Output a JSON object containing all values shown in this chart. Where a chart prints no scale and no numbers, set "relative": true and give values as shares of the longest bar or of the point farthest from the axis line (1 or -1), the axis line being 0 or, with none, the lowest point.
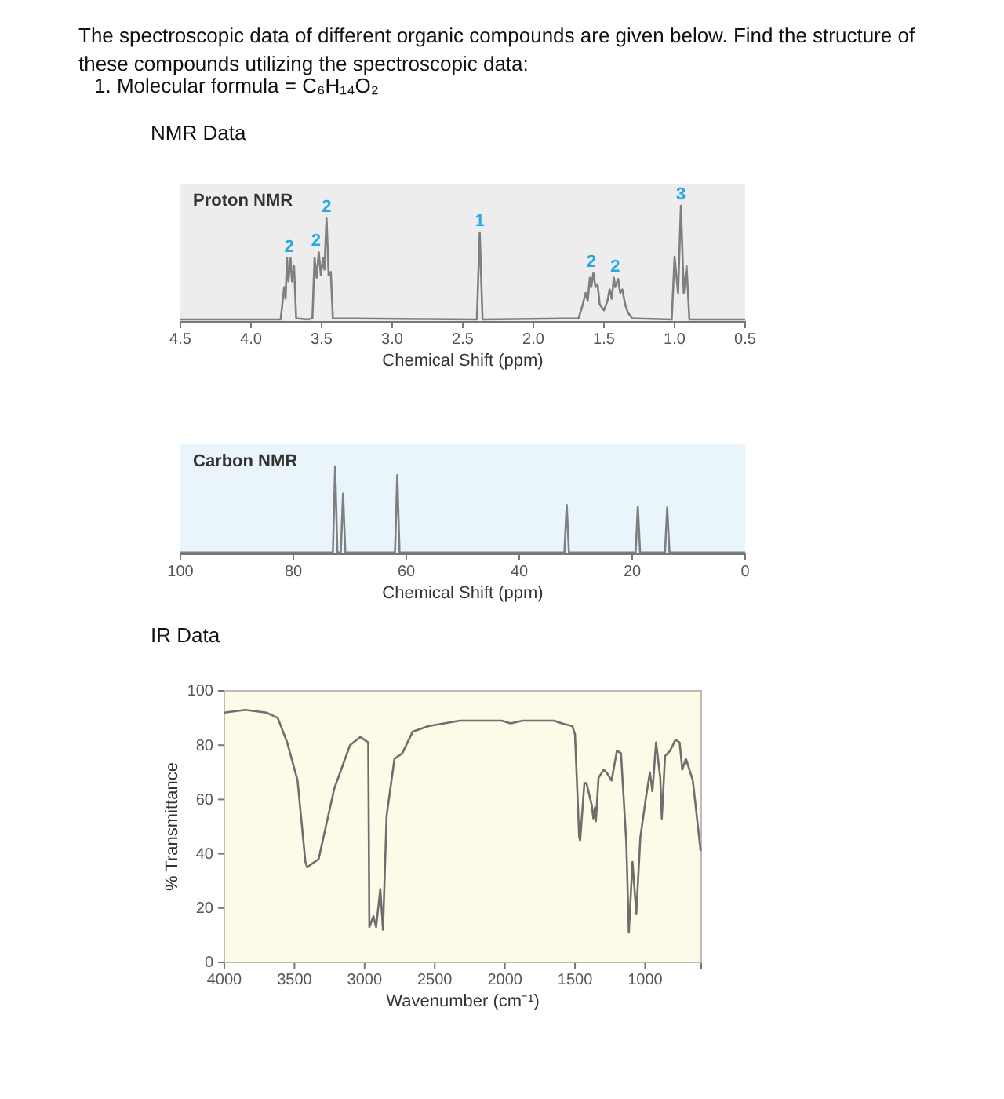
{
  "chart_data": [
    {
      "type": "line",
      "title": "Proton NMR",
      "xlabel": "Chemical Shift (ppm)",
      "relative": true,
      "xlim": [
        4.5,
        0.5
      ],
      "xticks": [
        4.5,
        {
          "value": 4,
          "label": "4.0"
        },
        3.5,
        {
          "value": 3,
          "label": "3.0"
        },
        2.5,
        {
          "value": 2,
          "label": "2.0"
        },
        1.5,
        {
          "value": 1,
          "label": "1.0"
        },
        0.5
      ],
      "annotations": [
        "The spectroscopic data of different organic compounds are given below. Find the structure of these compounds utilizing the spectroscopic data:",
        "1.   Molecular formula  = C₆H₁₄O₂",
        "NMR Data",
        {
          "text": "2",
          "x": 3.73,
          "y": 0.55
        },
        {
          "text": "2",
          "x": 3.54,
          "y": 0.6
        },
        {
          "text": "2",
          "x": 3.465,
          "y": 0.89
        },
        {
          "text": "1",
          "x": 2.38,
          "y": 0.77
        },
        {
          "text": "2",
          "x": 1.59,
          "y": 0.42
        },
        {
          "text": "2",
          "x": 1.42,
          "y": 0.38
        },
        {
          "text": "3",
          "x": 0.955,
          "y": 1
        }
      ],
      "series": [
        {
          "color": "#7f7f7f",
          "x": [
            4.5,
            3.79,
            3.765,
            3.755,
            3.745,
            3.735,
            3.72,
            3.71,
            3.695,
            3.68,
            3.6,
            3.565,
            3.55,
            3.535,
            3.52,
            3.505,
            3.49,
            3.48,
            3.465,
            3.45,
            3.435,
            3.42,
            2.4,
            2.38,
            2.36,
            1.68,
            1.65,
            1.63,
            1.615,
            1.6,
            1.59,
            1.575,
            1.56,
            1.545,
            1.53,
            1.5,
            1.475,
            1.46,
            1.445,
            1.43,
            1.42,
            1.4,
            1.385,
            1.37,
            1.35,
            1.33,
            1.3,
            1.02,
            1.0,
            0.975,
            0.955,
            0.935,
            0.915,
            0.895,
            0.5
          ],
          "values": [
            0.02,
            0.02,
            0.3,
            0.2,
            0.55,
            0.35,
            0.55,
            0.35,
            0.48,
            0.03,
            0.02,
            0.03,
            0.55,
            0.38,
            0.6,
            0.4,
            0.55,
            0.45,
            0.89,
            0.4,
            0.43,
            0.03,
            0.02,
            0.77,
            0.02,
            0.03,
            0.15,
            0.25,
            0.18,
            0.38,
            0.3,
            0.42,
            0.3,
            0.32,
            0.15,
            0.1,
            0.18,
            0.28,
            0.2,
            0.38,
            0.3,
            0.37,
            0.25,
            0.28,
            0.15,
            0.08,
            0.03,
            0.02,
            0.56,
            0.25,
            1.0,
            0.25,
            0.48,
            0.02,
            0.02
          ]
        }
      ]
    },
    {
      "type": "line",
      "title": "Carbon NMR",
      "xlabel": "Chemical Shift (ppm)",
      "relative": true,
      "xlim": [
        100,
        0
      ],
      "xticks": [
        100,
        80,
        60,
        40,
        20,
        0
      ],
      "series": [
        {
          "color": "#7f7f7f",
          "x": [
            100,
            73,
            72.6,
            72.2,
            71.6,
            71.2,
            70.8,
            62,
            61.6,
            61.2,
            32,
            31.6,
            31.2,
            19.4,
            19,
            18.6,
            14.2,
            13.8,
            13.4,
            0
          ],
          "values": [
            0.02,
            0.02,
            1,
            0.02,
            0.02,
            0.69,
            0.02,
            0.02,
            0.9,
            0.02,
            0.02,
            0.56,
            0.02,
            0.02,
            0.54,
            0.02,
            0.02,
            0.53,
            0.02,
            0.02
          ]
        }
      ]
    },
    {
      "type": "line",
      "xlabel": "Wavenumber (cm⁻¹)",
      "ylabel": "% Transmittance",
      "annotations": [
        "IR Data"
      ],
      "xlim": [
        4000,
        600
      ],
      "xticks": [
        4000,
        3500,
        3000,
        2500,
        2000,
        1500,
        1000
      ],
      "ylim": [
        0,
        100
      ],
      "yticks": [
        0,
        20,
        40,
        60,
        80,
        100
      ],
      "series": [
        {
          "color": "#6e6e6e",
          "x": [
            4000,
            3851,
            3701,
            3619,
            3552,
            3478,
            3422,
            3410,
            3384,
            3328,
            3216,
            3104,
            3030,
            2974,
            2966,
            2937,
            2918,
            2888,
            2869,
            2843,
            2787,
            2731,
            2657,
            2545,
            2321,
            2022,
            1959,
            1873,
            1649,
            1593,
            1519,
            1500,
            1470,
            1463,
            1433,
            1418,
            1381,
            1369,
            1358,
            1351,
            1332,
            1295,
            1276,
            1239,
            1201,
            1172,
            1134,
            1116,
            1090,
            1063,
            1034,
            996,
            966,
            948,
            922,
            892,
            881,
            858,
            821,
            784,
            754,
            735,
            709,
            660,
            604
          ],
          "values": [
            92,
            93,
            92,
            90,
            81,
            67,
            37,
            35,
            36,
            38,
            64,
            80,
            83,
            81,
            13,
            17,
            13,
            27,
            12,
            54,
            75,
            77,
            85,
            87,
            89,
            89,
            88,
            89,
            89,
            88,
            87,
            84,
            46,
            45,
            66,
            66,
            58,
            53,
            57,
            52,
            68,
            71,
            70,
            67,
            78,
            77,
            44,
            11,
            37,
            18,
            46,
            60,
            70,
            63,
            81,
            68,
            53,
            76,
            78,
            82,
            81,
            71,
            75,
            67,
            41
          ]
        }
      ]
    }
  ]
}
